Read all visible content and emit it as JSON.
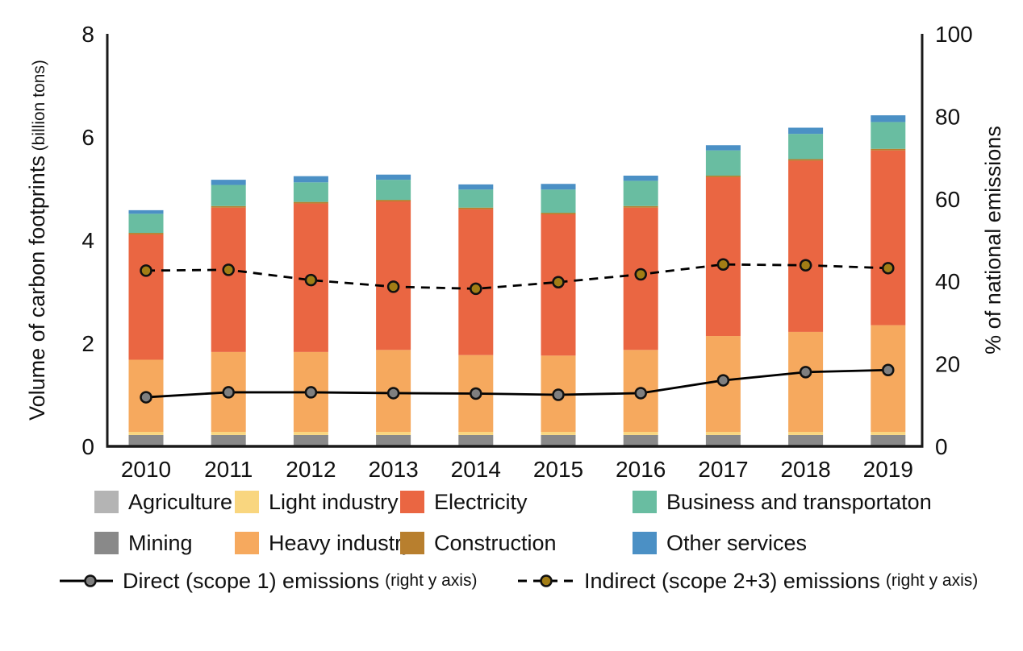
{
  "figure": {
    "background": "#ffffff",
    "text_color": "#111111",
    "axis_color": "#1a1a1a"
  },
  "chart_data": {
    "type": "bar",
    "subtype": "stacked-bars-with-lines",
    "title": "",
    "categories": [
      "2010",
      "2011",
      "2012",
      "2013",
      "2014",
      "2015",
      "2016",
      "2017",
      "2018",
      "2019"
    ],
    "left_axis": {
      "label_main": "Volume of carbon footprints",
      "label_sub": " (billion tons)",
      "ticks": [
        0,
        2,
        4,
        6,
        8
      ],
      "range": [
        0,
        8
      ]
    },
    "right_axis": {
      "label": "% of national emissions",
      "ticks": [
        0,
        20,
        40,
        60,
        80,
        100
      ],
      "range": [
        0,
        100
      ]
    },
    "grid": "off",
    "bar_series": [
      {
        "name": "Agriculture",
        "color": "#b4b4b4",
        "values": [
          0.02,
          0.02,
          0.02,
          0.02,
          0.02,
          0.02,
          0.02,
          0.02,
          0.02,
          0.02
        ]
      },
      {
        "name": "Mining",
        "color": "#898989",
        "values": [
          0.2,
          0.2,
          0.2,
          0.2,
          0.2,
          0.2,
          0.2,
          0.2,
          0.2,
          0.2
        ]
      },
      {
        "name": "Light industry",
        "color": "#f9d67f",
        "values": [
          0.06,
          0.06,
          0.06,
          0.06,
          0.06,
          0.06,
          0.06,
          0.06,
          0.06,
          0.06
        ]
      },
      {
        "name": "Heavy industry",
        "color": "#f6a95e",
        "values": [
          1.4,
          1.55,
          1.55,
          1.59,
          1.49,
          1.48,
          1.59,
          1.86,
          1.94,
          2.07
        ]
      },
      {
        "name": "Electricity",
        "color": "#ea6642",
        "values": [
          2.43,
          2.8,
          2.88,
          2.88,
          2.83,
          2.74,
          2.76,
          3.08,
          3.32,
          3.39
        ]
      },
      {
        "name": "Construction",
        "color": "#b87f2e",
        "values": [
          0.03,
          0.03,
          0.03,
          0.03,
          0.03,
          0.03,
          0.03,
          0.03,
          0.03,
          0.03
        ]
      },
      {
        "name": "Business and transportaton",
        "color": "#69bda1",
        "values": [
          0.37,
          0.41,
          0.38,
          0.39,
          0.35,
          0.45,
          0.49,
          0.49,
          0.49,
          0.52
        ]
      },
      {
        "name": "Other services",
        "color": "#4b90c5",
        "values": [
          0.07,
          0.1,
          0.12,
          0.1,
          0.1,
          0.11,
          0.1,
          0.1,
          0.12,
          0.13
        ]
      }
    ],
    "line_series": [
      {
        "name": "Direct (scope 1) emissions",
        "axis": "right",
        "style": "solid",
        "line_color": "#000000",
        "marker_fill": "#7f7f7f",
        "values": [
          11.9,
          13.1,
          13.1,
          12.9,
          12.8,
          12.5,
          12.9,
          16.0,
          18.0,
          18.5
        ]
      },
      {
        "name": "Indirect (scope 2+3) emissions",
        "axis": "right",
        "style": "dashed",
        "line_color": "#000000",
        "marker_fill": "#a27d15",
        "values": [
          42.6,
          42.8,
          40.3,
          38.7,
          38.2,
          39.8,
          41.7,
          44.1,
          43.9,
          43.2
        ]
      }
    ]
  },
  "legend": {
    "bar_items": [
      {
        "label": "Agriculture",
        "color": "#b4b4b4"
      },
      {
        "label": "Light industry",
        "color": "#f9d67f"
      },
      {
        "label": "Electricity",
        "color": "#ea6642"
      },
      {
        "label": "Business and transportaton",
        "color": "#69bda1"
      },
      {
        "label": "Mining",
        "color": "#898989"
      },
      {
        "label": "Heavy industry",
        "color": "#f6a95e"
      },
      {
        "label": "Construction",
        "color": "#b87f2e"
      },
      {
        "label": "Other services",
        "color": "#4b90c5"
      }
    ],
    "line_items": [
      {
        "label": "Direct (scope 1) emissions",
        "suffix": "(right y axis)",
        "style": "solid",
        "marker": "#7f7f7f"
      },
      {
        "label": "Indirect (scope 2+3) emissions",
        "suffix": "(right y axis)",
        "style": "dashed",
        "marker": "#a27d15"
      }
    ]
  }
}
